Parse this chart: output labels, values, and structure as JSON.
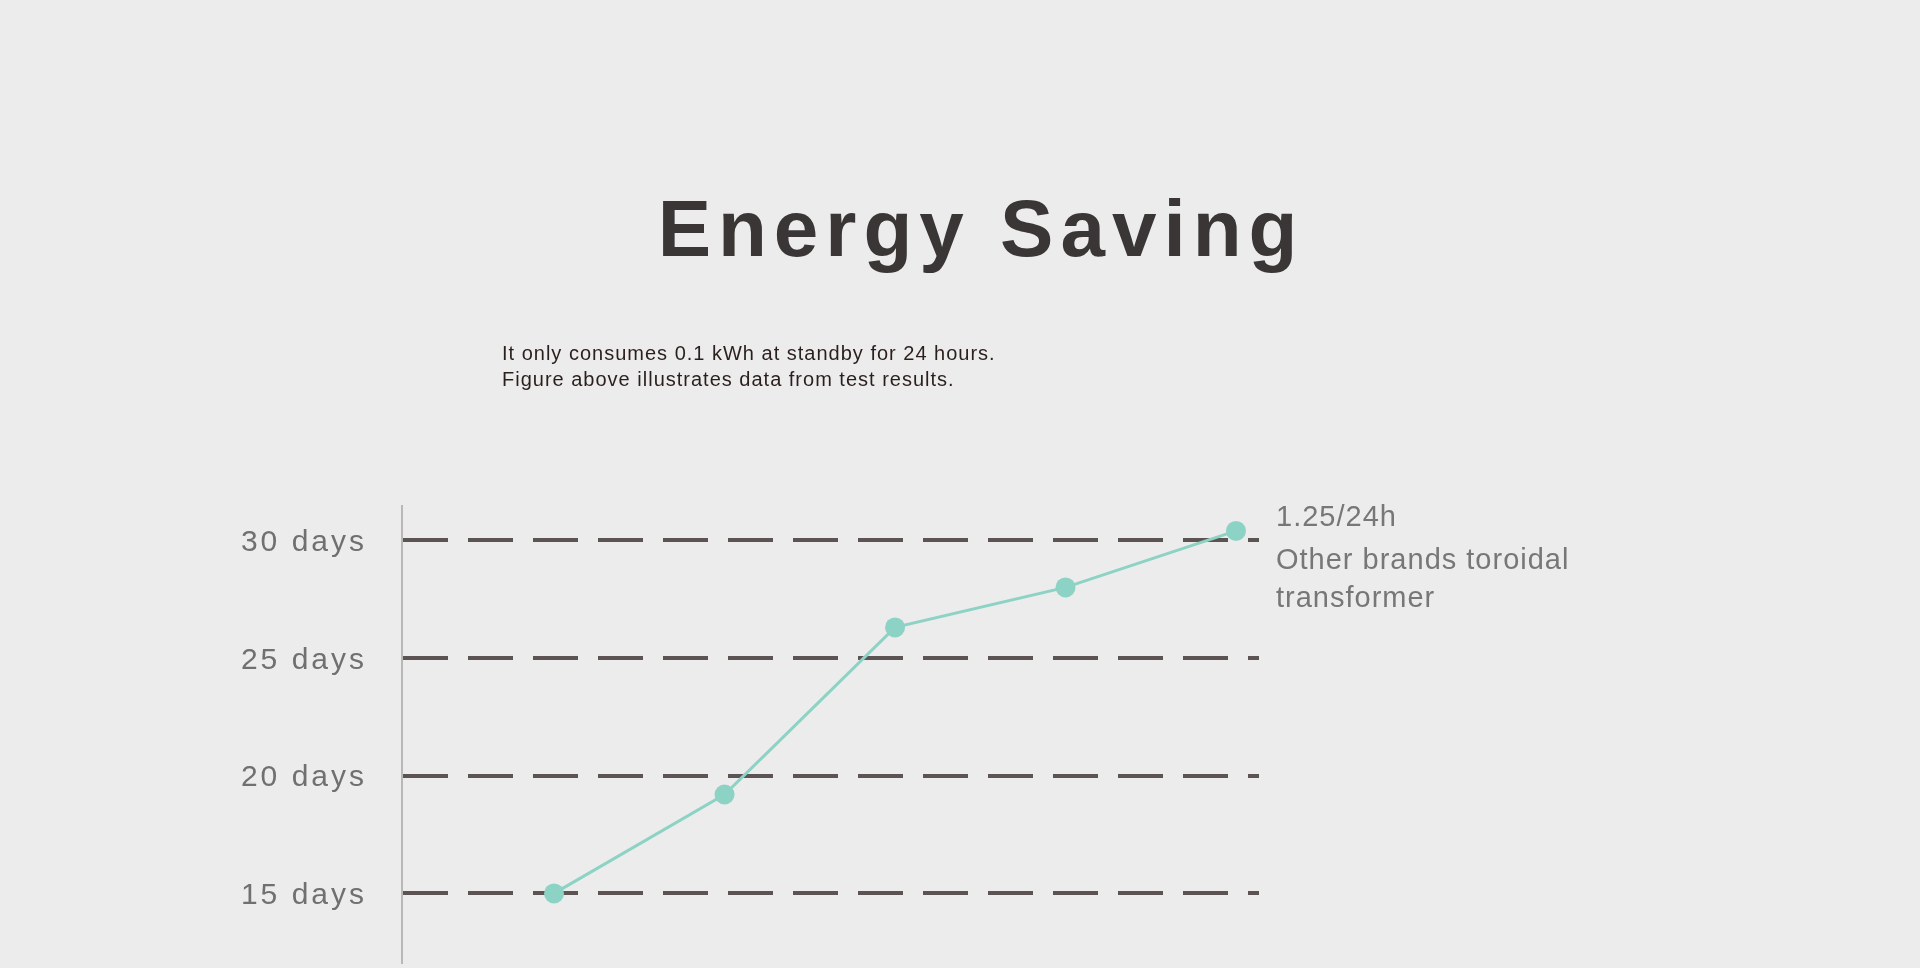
{
  "chart_data": {
    "type": "line",
    "title": "Energy Saving",
    "subtitle": "It only consumes 0.1 kWh at standby for 24 hours.\nFigure above illustrates data from test results.",
    "annotations": [
      "1.25/24h"
    ],
    "categories": [
      null,
      null,
      null,
      null,
      null
    ],
    "series": [
      {
        "name": "Other brands toroidal transformer",
        "color": "#8dd3c5",
        "values": [
          15.0,
          19.2,
          26.3,
          28.0,
          30.4
        ]
      }
    ],
    "ylim": [
      12,
      31.5
    ],
    "yticks": [
      {
        "value": 15,
        "label": "15 days"
      },
      {
        "value": 20,
        "label": "20 days"
      },
      {
        "value": 25,
        "label": "25 days"
      },
      {
        "value": 30,
        "label": "30 days"
      }
    ],
    "grid": "y",
    "marker": "circle",
    "line_style": "solid"
  }
}
